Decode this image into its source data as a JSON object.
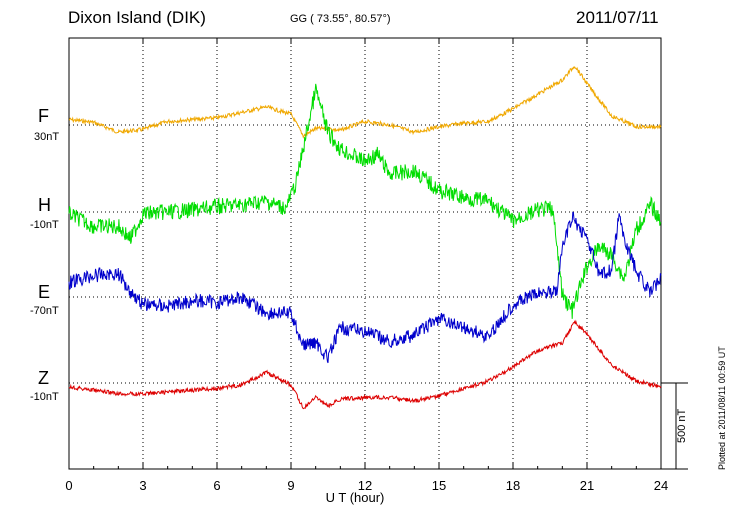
{
  "header": {
    "station": "Dixon Island (DIK)",
    "coords": "GG ( 73.55°,  80.57°)",
    "date": "2011/07/11"
  },
  "scale_label": "500 nT",
  "plotted_note": "Plotted at 2011/08/11 00:59 UT",
  "colors": {
    "F": "#f0a800",
    "H": "#00dd00",
    "E": "#0000cc",
    "Z": "#dd0000"
  },
  "chart_data": {
    "type": "line",
    "xlabel": "U T (hour)",
    "xlim": [
      0,
      24
    ],
    "xticks": [
      "0",
      "3",
      "6",
      "9",
      "12",
      "15",
      "18",
      "21",
      "24"
    ],
    "scale_bar_nT": 500,
    "series": [
      {
        "name": "F",
        "baseline_label": "30nT",
        "x": [
          0,
          1,
          2,
          3,
          4,
          5,
          6,
          7,
          8,
          9,
          9.5,
          10,
          10.5,
          11,
          12,
          13,
          14,
          15,
          16,
          17,
          18,
          19,
          20,
          20.5,
          21,
          22,
          23,
          24
        ],
        "y": [
          30,
          15,
          -40,
          -25,
          20,
          30,
          40,
          70,
          100,
          60,
          -60,
          -20,
          -20,
          -30,
          20,
          0,
          -40,
          -10,
          10,
          20,
          90,
          170,
          250,
          330,
          230,
          50,
          -10,
          -10
        ]
      },
      {
        "name": "H",
        "baseline_label": "-10nT",
        "x": [
          0,
          1,
          2,
          2.5,
          3,
          4,
          5,
          6,
          7,
          8,
          8.8,
          9.2,
          9.6,
          10,
          10.5,
          11,
          12,
          12.5,
          13,
          14,
          15,
          16,
          17,
          18,
          19,
          19.6,
          20,
          20.4,
          21,
          21.5,
          22,
          22.5,
          23,
          23.6,
          24
        ],
        "y": [
          -10,
          -80,
          -80,
          -150,
          -10,
          0,
          10,
          30,
          40,
          60,
          20,
          160,
          420,
          680,
          440,
          350,
          280,
          320,
          210,
          230,
          120,
          80,
          60,
          -50,
          10,
          20,
          -460,
          -550,
          -300,
          -190,
          -240,
          -370,
          -100,
          40,
          -60
        ]
      },
      {
        "name": "E",
        "baseline_label": "-70nT",
        "x": [
          0,
          1,
          2,
          2.5,
          3,
          4,
          5,
          6,
          7,
          8,
          9,
          9.5,
          10,
          10.5,
          11,
          12,
          13,
          14,
          15,
          16,
          17,
          18,
          19,
          19.8,
          20,
          20.4,
          21,
          21.5,
          22,
          22.3,
          22.5,
          23,
          23.6,
          24
        ],
        "y": [
          80,
          120,
          130,
          30,
          -40,
          -50,
          -20,
          -30,
          0,
          -90,
          -90,
          -270,
          -250,
          -340,
          -170,
          -190,
          -250,
          -210,
          -120,
          -170,
          -220,
          -40,
          20,
          40,
          280,
          440,
          330,
          120,
          150,
          450,
          330,
          140,
          20,
          120
        ]
      },
      {
        "name": "Z",
        "baseline_label": "-10nT",
        "x": [
          0,
          1,
          2,
          3,
          4,
          5,
          6,
          7,
          8,
          9,
          9.5,
          10,
          10.5,
          11,
          12,
          13,
          14,
          15,
          16,
          17,
          18,
          19,
          20,
          20.5,
          21,
          22,
          23,
          24
        ],
        "y": [
          -20,
          -40,
          -60,
          -60,
          -50,
          -40,
          -30,
          -10,
          60,
          -10,
          -140,
          -80,
          -130,
          -90,
          -80,
          -80,
          -100,
          -70,
          -30,
          10,
          90,
          180,
          220,
          340,
          270,
          100,
          10,
          -20
        ]
      }
    ]
  }
}
